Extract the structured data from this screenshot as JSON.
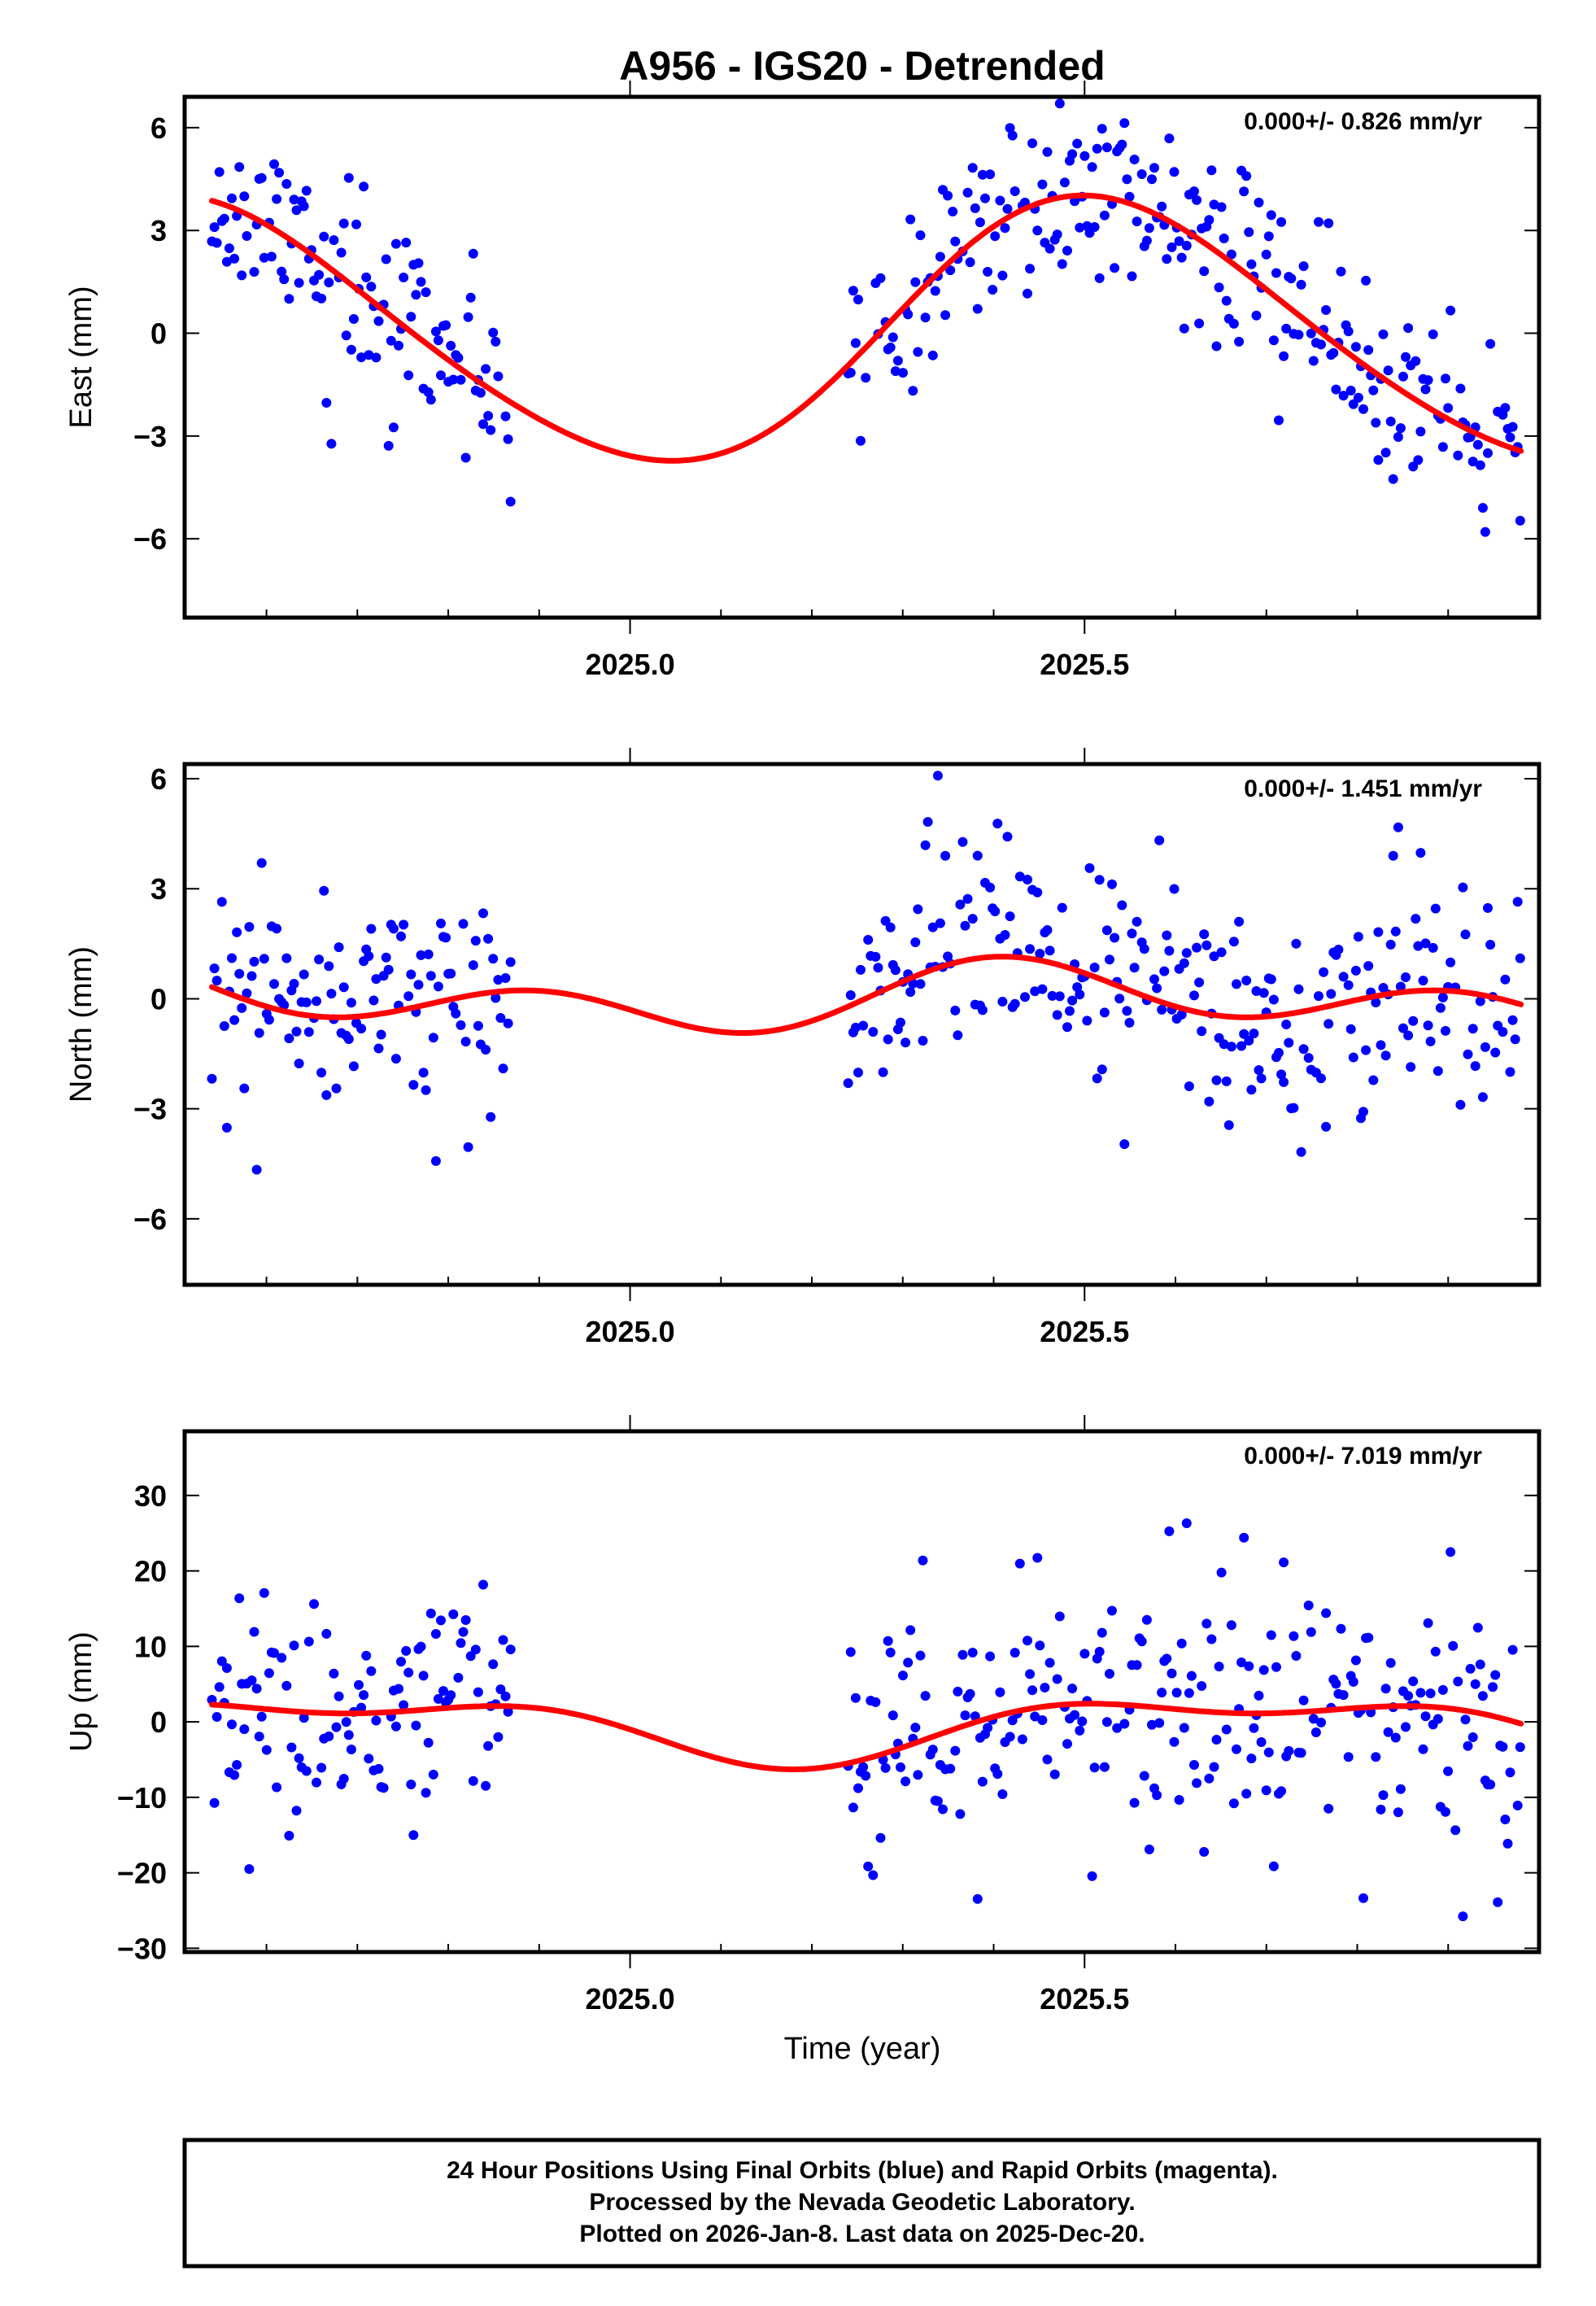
{
  "title": "A956 - IGS20 - Detrended",
  "xlabel": "Time (year)",
  "footer": {
    "line1": "24 Hour Positions Using Final Orbits (blue) and Rapid Orbits (magenta).",
    "line2": "Processed by the Nevada Geodetic Laboratory.",
    "line3": "Plotted on 2026-Jan-8. Last data on 2025-Dec-20."
  },
  "colors": {
    "points": "#0000ff",
    "fit": "#ff0000",
    "frame": "#000000"
  },
  "chart_data": [
    {
      "type": "scatter",
      "component": "east",
      "ylabel": "East (mm)",
      "rate_label": "0.000+/- 0.826 mm/yr",
      "xlim": [
        2024.51,
        2026.0
      ],
      "ylim": [
        -8.3,
        6.9
      ],
      "xticks": [
        2025.0,
        2025.5
      ],
      "xtick_labels": [
        "2025.0",
        "2025.5"
      ],
      "yticks": [
        -6,
        -3,
        0,
        3,
        6
      ],
      "ytick_labels": [
        "−6",
        "−3",
        "0",
        "3",
        "6"
      ],
      "series": [
        {
          "name": "Final Orbits (blue)",
          "segments": [
            [
              2024.54,
              2024.87
            ],
            [
              2025.24,
              2025.98
            ]
          ]
        },
        {
          "name": "Seasonal fit (red)",
          "x_range": [
            2024.54,
            2025.98
          ]
        }
      ],
      "model": {
        "offset": 0.0,
        "a1": -3.8,
        "b1": -0.45,
        "a2": 0.22,
        "b2": -0.25
      },
      "scatter_sd": 1.35,
      "seed": 11
    },
    {
      "type": "scatter",
      "component": "north",
      "ylabel": "North (mm)",
      "rate_label": "0.000+/- 1.451 mm/yr",
      "xlim": [
        2024.51,
        2026.0
      ],
      "ylim": [
        -7.8,
        6.4
      ],
      "xticks": [
        2025.0,
        2025.5
      ],
      "xtick_labels": [
        "2025.0",
        "2025.5"
      ],
      "yticks": [
        -6,
        -3,
        0,
        3,
        6
      ],
      "ytick_labels": [
        "−6",
        "−3",
        "0",
        "3",
        "6"
      ],
      "series": [
        {
          "name": "Final Orbits (blue)",
          "segments": [
            [
              2024.54,
              2024.87
            ],
            [
              2025.24,
              2025.98
            ]
          ]
        },
        {
          "name": "Seasonal fit (red)",
          "x_range": [
            2024.54,
            2025.98
          ]
        }
      ],
      "model": {
        "offset": 0.0,
        "a1": -0.5,
        "b1": 0.1,
        "a2": 0.2,
        "b2": -0.65
      },
      "scatter_sd": 1.6,
      "seed": 23
    },
    {
      "type": "scatter",
      "component": "up",
      "ylabel": "Up (mm)",
      "rate_label": "0.000+/- 7.019 mm/yr",
      "xlim": [
        2024.51,
        2026.0
      ],
      "ylim": [
        -30.5,
        38.5
      ],
      "xticks": [
        2025.0,
        2025.5
      ],
      "xtick_labels": [
        "2025.0",
        "2025.5"
      ],
      "yticks": [
        -30,
        -20,
        -10,
        0,
        10,
        20,
        30
      ],
      "ytick_labels": [
        "−30",
        "−20",
        "−10",
        "0",
        "10",
        "20",
        "30"
      ],
      "series": [
        {
          "name": "Final Orbits (blue)",
          "segments": [
            [
              2024.54,
              2024.87
            ],
            [
              2025.24,
              2025.98
            ]
          ]
        },
        {
          "name": "Seasonal fit (red)",
          "x_range": [
            2024.54,
            2025.98
          ]
        }
      ],
      "model": {
        "offset": -0.6,
        "a1": -1.7,
        "b1": -3.3,
        "a2": 1.3,
        "b2": -1.5
      },
      "scatter_sd": 8.5,
      "seed": 37
    }
  ]
}
